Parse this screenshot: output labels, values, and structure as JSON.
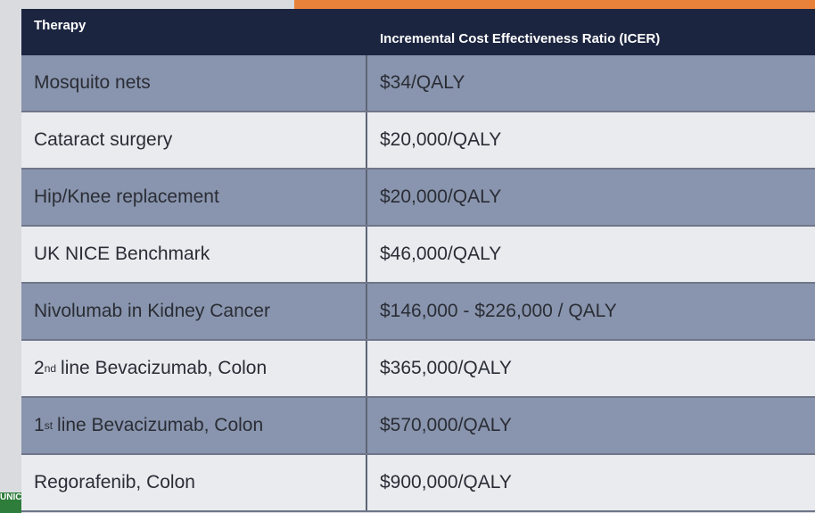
{
  "logo": "UNIC",
  "table": {
    "header": [
      "Therapy",
      "Incremental Cost Effectiveness Ratio (ICER)"
    ],
    "rows": [
      [
        "Mosquito nets",
        "$34/QALY"
      ],
      [
        "Cataract surgery",
        "$20,000/QALY"
      ],
      [
        "Hip/Knee replacement",
        "$20,000/QALY"
      ],
      [
        "UK NICE Benchmark",
        "$46,000/QALY"
      ],
      [
        "Nivolumab in Kidney Cancer",
        "$146,000 - $226,000 / QALY"
      ],
      [
        {
          "number": "2",
          "suffix": "nd",
          "text": "line Bevacizumab, Colon"
        },
        "$365,000/QALY"
      ],
      [
        {
          "number": "1",
          "suffix": "st",
          "text": "line Bevacizumab, Colon"
        },
        "$570,000/QALY"
      ],
      [
        "Regorafenib, Colon",
        "$900,000/QALY"
      ]
    ]
  }
}
